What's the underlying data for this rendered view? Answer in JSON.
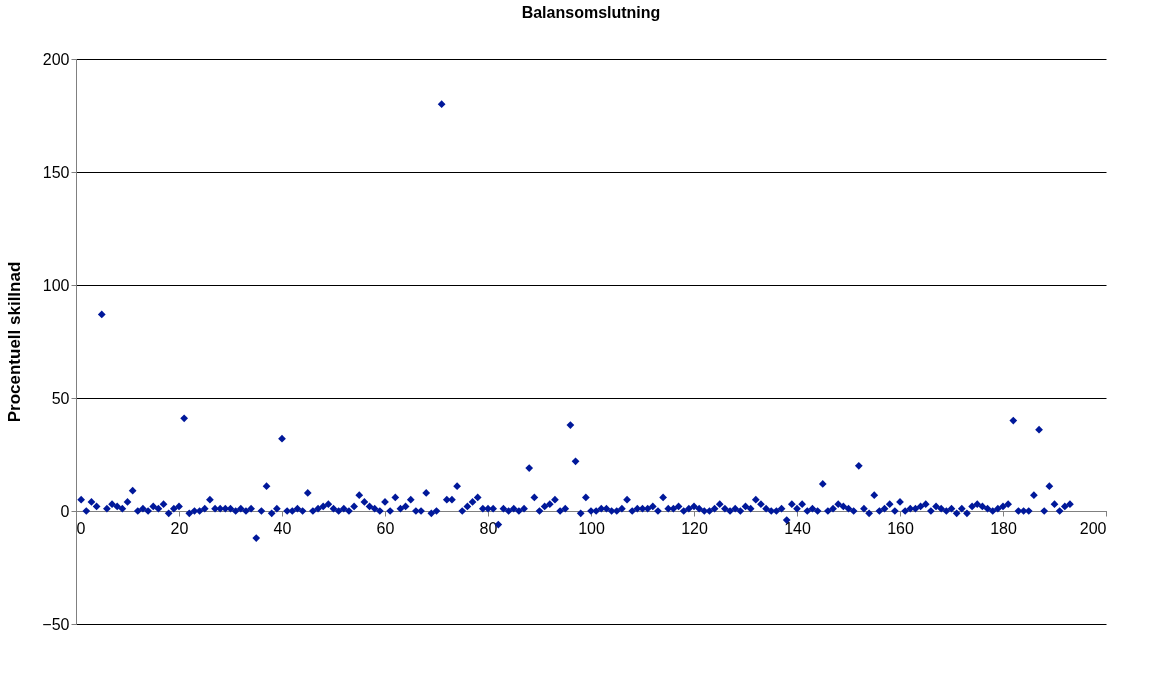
{
  "chart_data": {
    "type": "scatter",
    "title": "Balansomslutning",
    "ylabel": "Procentuell skillnad",
    "x": [
      1,
      2,
      3,
      4,
      5,
      6,
      7,
      8,
      9,
      10,
      11,
      12,
      13,
      14,
      15,
      16,
      17,
      18,
      19,
      20,
      21,
      22,
      23,
      24,
      25,
      26,
      27,
      28,
      29,
      30,
      31,
      32,
      33,
      34,
      35,
      36,
      37,
      38,
      39,
      40,
      41,
      42,
      43,
      44,
      45,
      46,
      47,
      48,
      49,
      50,
      51,
      52,
      53,
      54,
      55,
      56,
      57,
      58,
      59,
      60,
      61,
      62,
      63,
      64,
      65,
      66,
      67,
      68,
      69,
      70,
      71,
      72,
      73,
      74,
      75,
      76,
      77,
      78,
      79,
      80,
      81,
      82,
      83,
      84,
      85,
      86,
      87,
      88,
      89,
      90,
      91,
      92,
      93,
      94,
      95,
      96,
      97,
      98,
      99,
      100,
      101,
      102,
      103,
      104,
      105,
      106,
      107,
      108,
      109,
      110,
      111,
      112,
      113,
      114,
      115,
      116,
      117,
      118,
      119,
      120,
      121,
      122,
      123,
      124,
      125,
      126,
      127,
      128,
      129,
      130,
      131,
      132,
      133,
      134,
      135,
      136,
      137,
      138,
      139,
      140,
      141,
      142,
      143,
      144,
      145,
      146,
      147,
      148,
      149,
      150,
      151,
      152,
      153,
      154,
      155,
      156,
      157,
      158,
      159,
      160,
      161,
      162,
      163,
      164,
      165,
      166,
      167,
      168,
      169,
      170,
      171,
      172,
      173,
      174,
      175,
      176,
      177,
      178,
      179,
      180,
      181,
      182,
      183,
      184,
      185,
      186,
      187,
      188,
      189,
      190,
      191,
      192,
      193
    ],
    "series": [
      {
        "color": "#00189a",
        "values": [
          5,
          0,
          4,
          2,
          87,
          1,
          3,
          2,
          1,
          4,
          9,
          0,
          1,
          0,
          2,
          1,
          3,
          -1,
          1,
          2,
          41,
          -1,
          0,
          0,
          1,
          5,
          1,
          1,
          1,
          1,
          0,
          1,
          0,
          1,
          -12,
          0,
          11,
          -1,
          1,
          32,
          0,
          0,
          1,
          0,
          8,
          0,
          1,
          2,
          3,
          1,
          0,
          1,
          0,
          2,
          7,
          4,
          2,
          1,
          0,
          4,
          0,
          6,
          1,
          2,
          5,
          0,
          0,
          8,
          -1,
          0,
          180,
          5,
          5,
          11,
          0,
          2,
          4,
          6,
          1,
          1,
          1,
          -6,
          1,
          0,
          1,
          0,
          1,
          19,
          6,
          0,
          2,
          3,
          5,
          0,
          1,
          38,
          22,
          -1,
          6,
          0,
          0,
          1,
          1,
          0,
          0,
          1,
          5,
          0,
          1,
          1,
          1,
          2,
          0,
          6,
          1,
          1,
          2,
          0,
          1,
          2,
          1,
          0,
          0,
          1,
          3,
          1,
          0,
          1,
          0,
          2,
          1,
          5,
          3,
          1,
          0,
          0,
          1,
          -4,
          3,
          1,
          3,
          0,
          1,
          0,
          12,
          0,
          1,
          3,
          2,
          1,
          0,
          20,
          1,
          -1,
          7,
          0,
          1,
          3,
          0,
          4,
          0,
          1,
          1,
          2,
          3,
          0,
          2,
          1,
          0,
          1,
          -1,
          1,
          -1,
          2,
          3,
          2,
          1,
          0,
          1,
          2,
          3,
          40,
          0,
          0,
          0,
          7,
          36,
          0,
          11,
          3,
          0,
          2,
          3
        ]
      }
    ],
    "xlim": [
      0,
      200
    ],
    "xticks": [
      0,
      20,
      40,
      60,
      80,
      100,
      120,
      140,
      160,
      180,
      200
    ],
    "ylim": [
      -50,
      200
    ],
    "yticks": [
      -50,
      0,
      50,
      100,
      150,
      200
    ],
    "grid": "y",
    "marker": "diamond",
    "legend": false
  }
}
